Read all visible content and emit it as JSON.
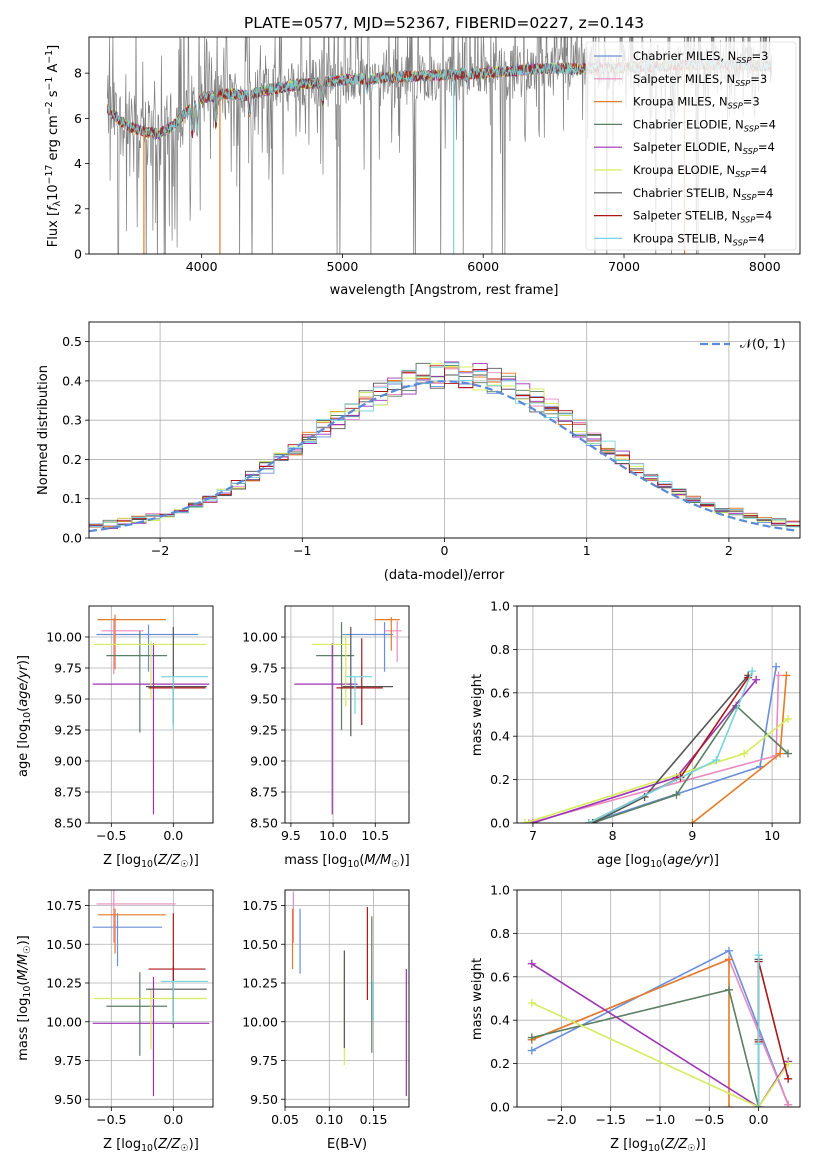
{
  "colors": {
    "chabrier_miles": "#6a8fdb",
    "salpeter_miles": "#ea8bbf",
    "kroupa_miles": "#e47b26",
    "chabrier_elodie": "#5b7f63",
    "salpeter_elodie": "#9d34b4",
    "kroupa_elodie": "#d6ec5c",
    "chabrier_stelib": "#555555",
    "salpeter_stelib": "#a91818",
    "kroupa_stelib": "#77d5de",
    "data": "#808080",
    "normal": "#5b8ad8"
  },
  "chart_data": [
    {
      "id": "spectrum",
      "type": "line",
      "title": "PLATE=0577, MJD=52367, FIBERID=0227, z=0.143",
      "xlabel": "wavelength [Angstrom, rest frame]",
      "ylabel": "Flux [f_λ 10^-17 erg cm^-2 s^-1 A^-1]",
      "xlim": [
        3200,
        8250
      ],
      "ylim": [
        0,
        9.6
      ],
      "xticks": [
        4000,
        5000,
        6000,
        7000,
        8000
      ],
      "yticks": [
        0,
        2,
        4,
        6,
        8
      ],
      "legend_position": "top-right",
      "legend": [
        "Chabrier MILES, N_SSP=3",
        "Salpeter MILES, N_SSP=3",
        "Kroupa MILES, N_SSP=3",
        "Chabrier ELODIE, N_SSP=4",
        "Salpeter ELODIE, N_SSP=4",
        "Kroupa ELODIE, N_SSP=4",
        "Chabrier STELIB, N_SSP=4",
        "Salpeter STELIB, N_SSP=4",
        "Kroupa STELIB, N_SSP=4"
      ],
      "model_continuum": {
        "x": [
          3330,
          3420,
          3500,
          3600,
          3700,
          3800,
          3900,
          4000,
          4100,
          4200,
          4300,
          4500,
          4700,
          5000,
          5300,
          5600,
          6000,
          6400,
          6800,
          7200,
          7600,
          8050
        ],
        "y": [
          6.4,
          5.9,
          5.6,
          5.4,
          5.3,
          5.7,
          6.3,
          6.9,
          7.0,
          7.1,
          7.0,
          7.3,
          7.5,
          7.7,
          7.8,
          7.9,
          8.0,
          8.2,
          8.2,
          8.3,
          8.4,
          8.3
        ]
      },
      "data_noise_range": [
        0,
        9.6
      ]
    },
    {
      "id": "residuals",
      "type": "histogram",
      "xlabel": "(data-model)/error",
      "ylabel": "Normed distribution",
      "xlim": [
        -2.5,
        2.5
      ],
      "ylim": [
        0,
        0.55
      ],
      "xticks": [
        -2,
        -1,
        0,
        1,
        2
      ],
      "yticks": [
        0.0,
        0.1,
        0.2,
        0.3,
        0.4,
        0.5
      ],
      "bin_width": 0.1,
      "legend": [
        "𝒩(0, 1)"
      ],
      "legend_position": "top-right",
      "reference_series": "𝒩(0, 1) density"
    },
    {
      "id": "age_vs_Z",
      "type": "errorbar",
      "xlabel": "Z [log10(Z/Z☉)]",
      "ylabel": "age [log10(age/yr)]",
      "xlim": [
        -0.68,
        0.32
      ],
      "ylim": [
        8.5,
        10.25
      ],
      "xticks": [
        -0.5,
        0.0
      ],
      "yticks": [
        8.5,
        8.75,
        9.0,
        9.25,
        9.5,
        9.75,
        10.0
      ],
      "points": [
        {
          "series": "chabrier_miles",
          "x": -0.2,
          "xerr": [
            0.42,
            0.4
          ],
          "y": 10.02,
          "yerr": [
            0.3,
            0.08
          ]
        },
        {
          "series": "salpeter_miles",
          "x": -0.48,
          "xerr": [
            0.1,
            0.24
          ],
          "y": 10.05,
          "yerr": [
            0.35,
            0.1
          ]
        },
        {
          "series": "kroupa_miles",
          "x": -0.47,
          "xerr": [
            0.14,
            0.41
          ],
          "y": 10.14,
          "yerr": [
            0.4,
            0.04
          ]
        },
        {
          "series": "chabrier_elodie",
          "x": -0.27,
          "xerr": [
            0.27,
            0.22
          ],
          "y": 9.85,
          "yerr": [
            0.62,
            0.2
          ]
        },
        {
          "series": "salpeter_elodie",
          "x": -0.16,
          "xerr": [
            0.49,
            0.45
          ],
          "y": 9.62,
          "yerr": [
            1.05,
            0.33
          ]
        },
        {
          "series": "kroupa_elodie",
          "x": -0.18,
          "xerr": [
            0.46,
            0.45
          ],
          "y": 9.94,
          "yerr": [
            0.44,
            0.03
          ]
        },
        {
          "series": "chabrier_stelib",
          "x": 0.0,
          "xerr": [
            0.22,
            0.27
          ],
          "y": 9.6,
          "yerr": [
            0.3,
            0.48
          ]
        },
        {
          "series": "salpeter_stelib",
          "x": 0.0,
          "xerr": [
            0.2,
            0.26
          ],
          "y": 9.59,
          "yerr": [
            0.0,
            0.0
          ]
        },
        {
          "series": "kroupa_stelib",
          "x": 0.0,
          "xerr": [
            0.1,
            0.28
          ],
          "y": 9.68,
          "yerr": [
            0.42,
            0.0
          ]
        }
      ]
    },
    {
      "id": "age_vs_mass",
      "type": "errorbar",
      "xlabel": "mass [log10(M/M☉)]",
      "ylabel": "",
      "xlim": [
        9.43,
        10.9
      ],
      "ylim": [
        8.5,
        10.25
      ],
      "xticks": [
        9.5,
        10.0,
        10.5
      ],
      "yticks": [
        8.5,
        8.75,
        9.0,
        9.25,
        9.5,
        9.75,
        10.0
      ],
      "points": [
        {
          "series": "chabrier_miles",
          "x": 10.61,
          "xerr": [
            0.5,
            0.1
          ],
          "y": 10.02,
          "yerr": [
            0.3,
            0.1
          ]
        },
        {
          "series": "salpeter_miles",
          "x": 10.76,
          "xerr": [
            0.15,
            0.05
          ],
          "y": 10.05,
          "yerr": [
            0.25,
            0.08
          ]
        },
        {
          "series": "kroupa_miles",
          "x": 10.69,
          "xerr": [
            0.2,
            0.1
          ],
          "y": 10.14,
          "yerr": [
            0.25,
            0.02
          ]
        },
        {
          "series": "chabrier_elodie",
          "x": 10.1,
          "xerr": [
            0.3,
            0.15
          ],
          "y": 9.85,
          "yerr": [
            0.6,
            0.27
          ]
        },
        {
          "series": "salpeter_elodie",
          "x": 9.99,
          "xerr": [
            0.45,
            0.3
          ],
          "y": 9.62,
          "yerr": [
            1.05,
            0.33
          ]
        },
        {
          "series": "kroupa_elodie",
          "x": 10.15,
          "xerr": [
            0.4,
            0.05
          ],
          "y": 9.94,
          "yerr": [
            0.5,
            0.08
          ]
        },
        {
          "series": "chabrier_stelib",
          "x": 10.21,
          "xerr": [
            0.1,
            0.5
          ],
          "y": 9.6,
          "yerr": [
            0.4,
            0.48
          ]
        },
        {
          "series": "salpeter_stelib",
          "x": 10.34,
          "xerr": [
            0.3,
            0.25
          ],
          "y": 9.59,
          "yerr": [
            0.3,
            0.4
          ]
        },
        {
          "series": "kroupa_stelib",
          "x": 10.26,
          "xerr": [
            0.1,
            0.2
          ],
          "y": 9.68,
          "yerr": [
            0.3,
            0.0
          ]
        }
      ]
    },
    {
      "id": "weight_vs_age",
      "type": "line",
      "xlabel": "age [log10(age/yr)]",
      "ylabel": "mass weight",
      "xlim": [
        6.8,
        10.35
      ],
      "ylim": [
        0.0,
        1.0
      ],
      "xticks": [
        7,
        8,
        9,
        10
      ],
      "yticks": [
        0.0,
        0.2,
        0.4,
        0.6,
        0.8,
        1.0
      ],
      "series": [
        {
          "key": "chabrier_miles",
          "x": [
            7.7,
            9.85,
            10.05
          ],
          "y": [
            0.0,
            0.26,
            0.72
          ]
        },
        {
          "key": "salpeter_miles",
          "x": [
            6.95,
            10.05,
            10.08
          ],
          "y": [
            0.0,
            0.31,
            0.68
          ]
        },
        {
          "key": "kroupa_miles",
          "x": [
            9.0,
            10.1,
            10.18
          ],
          "y": [
            0.0,
            0.32,
            0.68
          ]
        },
        {
          "key": "chabrier_elodie",
          "x": [
            7.75,
            8.8,
            9.55,
            10.2
          ],
          "y": [
            0.0,
            0.13,
            0.54,
            0.32
          ]
        },
        {
          "key": "salpeter_elodie",
          "x": [
            7.0,
            8.8,
            9.8
          ],
          "y": [
            0.0,
            0.21,
            0.66
          ]
        },
        {
          "key": "kroupa_elodie",
          "x": [
            6.9,
            9.65,
            10.2
          ],
          "y": [
            0.0,
            0.32,
            0.48
          ]
        },
        {
          "key": "chabrier_stelib",
          "x": [
            7.75,
            8.4,
            9.7
          ],
          "y": [
            0.0,
            0.12,
            0.68
          ]
        },
        {
          "key": "salpeter_stelib",
          "x": [
            7.7,
            8.85,
            9.7
          ],
          "y": [
            0.0,
            0.21,
            0.67
          ]
        },
        {
          "key": "kroupa_stelib",
          "x": [
            7.7,
            9.3,
            9.75
          ],
          "y": [
            0.0,
            0.29,
            0.7
          ]
        }
      ]
    },
    {
      "id": "mass_vs_Z",
      "type": "errorbar",
      "xlabel": "Z [log10(Z/Z☉)]",
      "ylabel": "mass [log10(M/M☉)]",
      "xlim": [
        -0.68,
        0.32
      ],
      "ylim": [
        9.45,
        10.85
      ],
      "xticks": [
        -0.5,
        0.0
      ],
      "yticks": [
        9.5,
        9.75,
        10.0,
        10.25,
        10.5,
        10.75
      ],
      "points": [
        {
          "series": "chabrier_miles",
          "x": -0.45,
          "xerr": [
            0.2,
            0.36
          ],
          "y": 10.61,
          "yerr": [
            0.25,
            0.09
          ]
        },
        {
          "series": "salpeter_miles",
          "x": -0.48,
          "xerr": [
            0.14,
            0.5
          ],
          "y": 10.76,
          "yerr": [
            0.25,
            0.09
          ]
        },
        {
          "series": "kroupa_miles",
          "x": -0.47,
          "xerr": [
            0.14,
            0.41
          ],
          "y": 10.69,
          "yerr": [
            0.25,
            0.04
          ]
        },
        {
          "series": "chabrier_elodie",
          "x": -0.27,
          "xerr": [
            0.27,
            0.22
          ],
          "y": 10.1,
          "yerr": [
            0.32,
            0.22
          ]
        },
        {
          "series": "salpeter_elodie",
          "x": -0.16,
          "xerr": [
            0.49,
            0.45
          ],
          "y": 9.99,
          "yerr": [
            0.47,
            0.3
          ]
        },
        {
          "series": "kroupa_elodie",
          "x": -0.18,
          "xerr": [
            0.46,
            0.45
          ],
          "y": 10.15,
          "yerr": [
            0.33,
            0.06
          ]
        },
        {
          "series": "chabrier_stelib",
          "x": 0.0,
          "xerr": [
            0.22,
            0.27
          ],
          "y": 10.21,
          "yerr": [
            0.25,
            0.15
          ]
        },
        {
          "series": "salpeter_stelib",
          "x": 0.0,
          "xerr": [
            0.2,
            0.26
          ],
          "y": 10.34,
          "yerr": [
            0.3,
            0.36
          ]
        },
        {
          "series": "kroupa_stelib",
          "x": 0.0,
          "xerr": [
            0.1,
            0.28
          ],
          "y": 10.26,
          "yerr": [
            0.27,
            0.0
          ]
        }
      ]
    },
    {
      "id": "mass_vs_ebv",
      "type": "errorbar",
      "xlabel": "E(B-V)",
      "ylabel": "",
      "xlim": [
        0.05,
        0.19
      ],
      "ylim": [
        9.45,
        10.85
      ],
      "xticks": [
        0.05,
        0.1,
        0.15
      ],
      "yticks": [
        9.5,
        9.75,
        10.0,
        10.25,
        10.5,
        10.75
      ],
      "points": [
        {
          "series": "chabrier_miles",
          "x": 0.067,
          "y": 10.61,
          "yerr": [
            0.3,
            0.12
          ]
        },
        {
          "series": "salpeter_miles",
          "x": 0.0595,
          "y": 10.76,
          "yerr": [
            0.25,
            0.08
          ]
        },
        {
          "series": "kroupa_miles",
          "x": 0.0585,
          "y": 10.69,
          "yerr": [
            0.35,
            0.04
          ]
        },
        {
          "series": "chabrier_elodie",
          "x": 0.148,
          "y": 10.1,
          "yerr": [
            0.3,
            0.58
          ]
        },
        {
          "series": "salpeter_elodie",
          "x": 0.187,
          "y": 9.99,
          "yerr": [
            0.47,
            0.35
          ]
        },
        {
          "series": "kroupa_elodie",
          "x": 0.117,
          "y": 10.15,
          "yerr": [
            0.43,
            0.24
          ]
        },
        {
          "series": "chabrier_stelib",
          "x": 0.117,
          "y": 10.21,
          "yerr": [
            0.38,
            0.25
          ]
        },
        {
          "series": "salpeter_stelib",
          "x": 0.143,
          "y": 10.34,
          "yerr": [
            0.2,
            0.4
          ]
        },
        {
          "series": "kroupa_stelib",
          "x": 0.149,
          "y": 10.26,
          "yerr": [
            0.25,
            0.0
          ]
        }
      ]
    },
    {
      "id": "weight_vs_Z",
      "type": "line",
      "xlabel": "Z [log10(Z/Z☉)]",
      "ylabel": "mass weight",
      "xlim": [
        -2.45,
        0.42
      ],
      "ylim": [
        0.0,
        1.0
      ],
      "xticks": [
        -2.0,
        -1.5,
        -1.0,
        -0.5,
        0.0
      ],
      "yticks": [
        0.0,
        0.2,
        0.4,
        0.6,
        0.8,
        1.0
      ],
      "series": [
        {
          "key": "chabrier_miles",
          "x": [
            -2.3,
            -0.3,
            0.3
          ],
          "y": [
            0.26,
            0.72,
            0.01
          ]
        },
        {
          "key": "salpeter_miles",
          "x": [
            -2.3,
            -0.3,
            0.3
          ],
          "y": [
            0.31,
            0.68,
            0.01
          ]
        },
        {
          "key": "kroupa_miles",
          "x": [
            -2.3,
            -0.3,
            -0.3
          ],
          "y": [
            0.31,
            0.68,
            0.0
          ]
        },
        {
          "key": "chabrier_elodie",
          "x": [
            -2.3,
            -0.3,
            0.0
          ],
          "y": [
            0.32,
            0.54,
            0.0
          ]
        },
        {
          "key": "salpeter_elodie",
          "x": [
            -2.3,
            0.0,
            0.3
          ],
          "y": [
            0.66,
            0.0,
            0.21
          ]
        },
        {
          "key": "kroupa_elodie",
          "x": [
            -2.3,
            0.0,
            0.3
          ],
          "y": [
            0.48,
            0.0,
            0.2
          ]
        },
        {
          "key": "chabrier_stelib",
          "x": [
            0.0,
            0.0,
            0.0
          ],
          "y": [
            0.31,
            0.68,
            0.0
          ]
        },
        {
          "key": "salpeter_stelib",
          "x": [
            0.0,
            0.0,
            0.3
          ],
          "y": [
            0.3,
            0.67,
            0.13
          ]
        },
        {
          "key": "kroupa_stelib",
          "x": [
            0.0,
            0.0,
            0.0
          ],
          "y": [
            0.29,
            0.7,
            0.0
          ]
        }
      ]
    }
  ]
}
